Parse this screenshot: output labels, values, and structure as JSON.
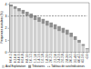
{
  "chart_data": {
    "type": "bar",
    "stacked": true,
    "y_label": "Frequences cumulees (%)",
    "categories": [
      "0.0-0.2",
      "0.2-0.4",
      "0.4-0.6",
      "0.6-0.8",
      "0.8-1.0",
      "1.0-1.2",
      "1.2-1.4",
      "1.4-1.6",
      "1.6-1.8",
      "1.8-2.0",
      "2.0-2.2",
      "2.2-2.4",
      "2.4-2.6",
      "2.6-2.8",
      "2.8-3.0",
      "3.0-3.5",
      "3.5-4.0",
      "4.0-4.5",
      "4.5-5.0",
      ">5.0"
    ],
    "series": [
      {
        "name": "Aval Exploitation",
        "color": "#d0d0d0",
        "values": [
          3.78,
          3.58,
          3.38,
          3.18,
          3.0,
          2.82,
          2.66,
          2.5,
          2.34,
          2.18,
          2.03,
          1.88,
          1.73,
          1.58,
          1.43,
          1.24,
          1.0,
          0.77,
          0.5,
          0.22
        ]
      },
      {
        "name": "Tributaires",
        "color": "#909090",
        "values": [
          0.17,
          0.22,
          0.27,
          0.32,
          0.35,
          0.38,
          0.39,
          0.4,
          0.41,
          0.42,
          0.42,
          0.42,
          0.42,
          0.42,
          0.42,
          0.36,
          0.3,
          0.23,
          0.15,
          0.08
        ]
      },
      {
        "name": "Tableau de suivi/indicateurs",
        "type": "line",
        "line_style": "dashed",
        "color": "#555555",
        "values": [
          3.0,
          3.0,
          3.0,
          3.0,
          3.0,
          3.0,
          3.0,
          3.0,
          3.0,
          3.0,
          3.0,
          3.0,
          3.0,
          3.0,
          3.0,
          3.0,
          3.0,
          3.0,
          3.0,
          3.0
        ]
      }
    ],
    "ylim": [
      0,
      4.1
    ],
    "yticks": [
      0,
      1,
      2,
      3,
      4
    ],
    "grid": false,
    "legend": "bottom"
  }
}
